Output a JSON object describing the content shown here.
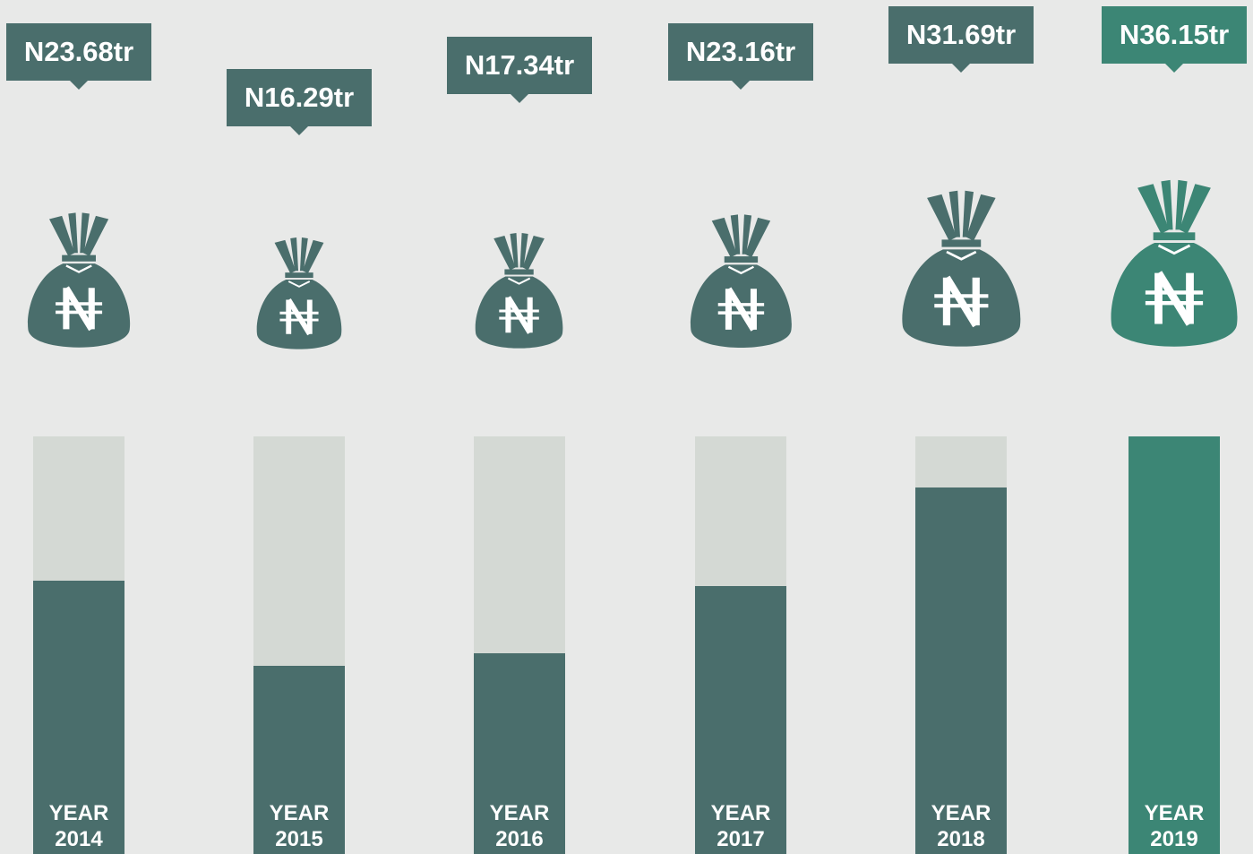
{
  "chart_data": {
    "type": "bar",
    "categories": [
      "YEAR 2014",
      "YEAR 2015",
      "YEAR 2016",
      "YEAR 2017",
      "YEAR 2018",
      "YEAR 2019"
    ],
    "values": [
      23.68,
      16.29,
      17.34,
      23.16,
      31.69,
      36.15
    ],
    "value_labels": [
      "N23.68tr",
      "N16.29tr",
      "N17.34tr",
      "N23.16tr",
      "N31.69tr",
      "N36.15tr"
    ],
    "colors": [
      "#4a6e6c",
      "#4a6e6c",
      "#4a6e6c",
      "#4a6e6c",
      "#4a6e6c",
      "#3c8675"
    ],
    "track_color": "#d4d9d4",
    "ylim": [
      0,
      36.15
    ]
  }
}
